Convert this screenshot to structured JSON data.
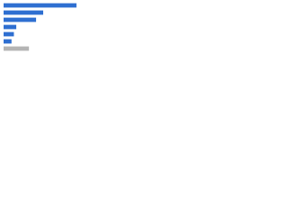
{
  "chart_data": {
    "type": "hbar",
    "categories": [
      null,
      null,
      null,
      null,
      null,
      null,
      null
    ],
    "values": [
      92,
      50,
      41,
      16,
      13,
      10,
      32
    ],
    "colors": [
      "#2e6fd1",
      "#2e6fd1",
      "#2e6fd1",
      "#2e6fd1",
      "#2e6fd1",
      "#2e6fd1",
      "#b4b4b4"
    ],
    "xlim": [
      0,
      100
    ]
  }
}
